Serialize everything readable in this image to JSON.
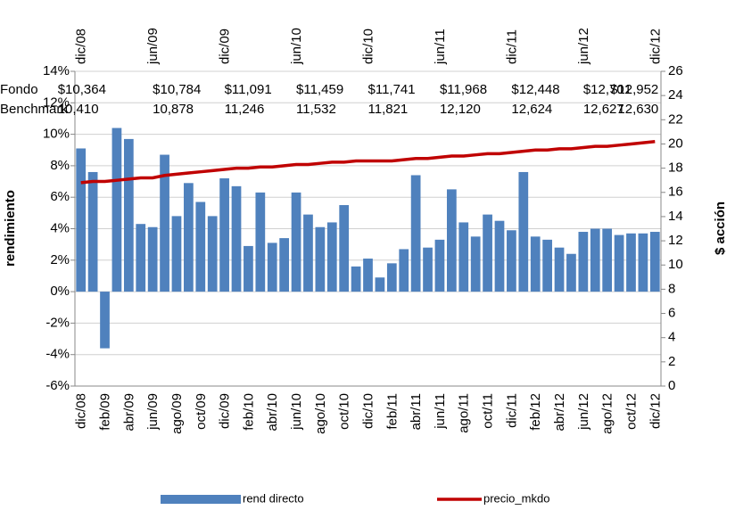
{
  "chart_data": {
    "type": "bar",
    "categories": [
      "dic/08",
      null,
      "feb/09",
      null,
      "abr/09",
      null,
      "jun/09",
      null,
      "ago/09",
      null,
      "oct/09",
      null,
      "dic/09",
      null,
      "feb/10",
      null,
      "abr/10",
      null,
      "jun/10",
      null,
      "ago/10",
      null,
      "oct/10",
      null,
      "dic/10",
      null,
      "feb/11",
      null,
      "abr/11",
      null,
      "jun/11",
      null,
      "ago/11",
      null,
      "oct/11",
      null,
      "dic/11",
      null,
      "feb/12",
      null,
      "abr/12",
      null,
      "jun/12",
      null,
      "ago/12",
      null,
      "oct/12",
      null,
      "dic/12"
    ],
    "top_categories": [
      "dic/08",
      null,
      null,
      null,
      null,
      null,
      "jun/09",
      null,
      null,
      null,
      null,
      null,
      "dic/09",
      null,
      null,
      null,
      null,
      null,
      "jun/10",
      null,
      null,
      null,
      null,
      null,
      "dic/10",
      null,
      null,
      null,
      null,
      null,
      "jun/11",
      null,
      null,
      null,
      null,
      null,
      "dic/11",
      null,
      null,
      null,
      null,
      null,
      "jun/12",
      null,
      null,
      null,
      null,
      null,
      "dic/12"
    ],
    "series": [
      {
        "name": "rend directo",
        "type": "bar",
        "color": "#4f81bd",
        "values": [
          9.1,
          7.6,
          -3.6,
          10.4,
          9.7,
          4.3,
          4.1,
          8.7,
          4.8,
          6.9,
          5.7,
          4.8,
          7.2,
          6.7,
          2.9,
          6.3,
          3.1,
          3.4,
          6.3,
          4.9,
          4.1,
          4.4,
          5.5,
          1.6,
          2.1,
          0.9,
          1.8,
          2.7,
          7.4,
          2.8,
          3.3,
          6.5,
          4.4,
          3.5,
          4.9,
          4.5,
          3.9,
          7.6,
          3.5,
          3.3,
          2.8,
          2.4,
          3.8,
          4.0,
          4.0,
          3.6,
          3.7,
          3.7,
          3.8
        ]
      },
      {
        "name": "precio_mkdo",
        "type": "line",
        "axis": "y2",
        "color": "#c00000",
        "values": [
          16.8,
          16.9,
          16.9,
          17.0,
          17.1,
          17.2,
          17.2,
          17.4,
          17.5,
          17.6,
          17.7,
          17.8,
          17.9,
          18.0,
          18.0,
          18.1,
          18.1,
          18.2,
          18.3,
          18.3,
          18.4,
          18.5,
          18.5,
          18.6,
          18.6,
          18.6,
          18.6,
          18.7,
          18.8,
          18.8,
          18.9,
          19.0,
          19.0,
          19.1,
          19.2,
          19.2,
          19.3,
          19.4,
          19.5,
          19.5,
          19.6,
          19.6,
          19.7,
          19.8,
          19.8,
          19.9,
          20.0,
          20.1,
          20.2
        ]
      }
    ],
    "ylabel": "rendimiento",
    "y2label": "$ acción",
    "ylim": [
      -6,
      14
    ],
    "yticks": [
      {
        "value": -6,
        "label": "-6%"
      },
      {
        "value": -4,
        "label": "-4%"
      },
      {
        "value": -2,
        "label": "-2%"
      },
      {
        "value": 0,
        "label": "0%"
      },
      {
        "value": 2,
        "label": "2%"
      },
      {
        "value": 4,
        "label": "4%"
      },
      {
        "value": 6,
        "label": "6%"
      },
      {
        "value": 8,
        "label": "8%"
      },
      {
        "value": 10,
        "label": "10%"
      },
      {
        "value": 12,
        "label": "12%"
      },
      {
        "value": 14,
        "label": "14%"
      }
    ],
    "y2lim": [
      0,
      26
    ],
    "y2ticks": [
      0,
      2,
      4,
      6,
      8,
      10,
      12,
      14,
      16,
      18,
      20,
      22,
      24,
      26
    ],
    "grid": true,
    "legend": "bottom",
    "annotations": [
      {
        "label": "Fondo",
        "values": [
          10364,
          10784,
          11091,
          11459,
          11741,
          11968,
          12448,
          12701,
          12952
        ],
        "value_labels": [
          "$10,364",
          "$10,784",
          "$11,091",
          "$11,459",
          "$11,741",
          "$11,968",
          "$12,448",
          "$12,701",
          "$12,952"
        ]
      },
      {
        "label": "Benchmark",
        "values": [
          10410,
          10878,
          11246,
          11532,
          11821,
          12120,
          12624,
          12627,
          12630
        ],
        "value_labels": [
          "10,410",
          "10,878",
          "11,246",
          "11,532",
          "11,821",
          "12,120",
          "12,624",
          "12,627",
          "12,630"
        ]
      }
    ]
  }
}
